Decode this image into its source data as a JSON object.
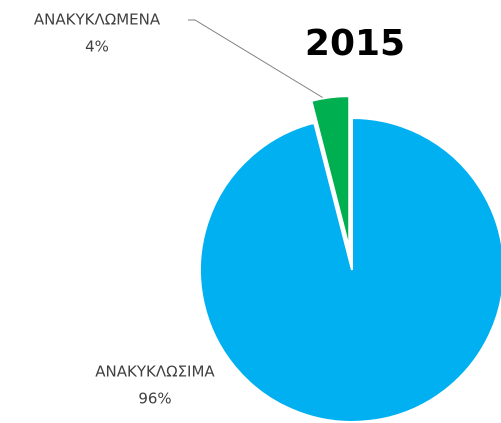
{
  "chart_data": {
    "type": "pie",
    "title": "2015",
    "categories": [
      "ΑΝΑΚΥΚΛΩΜΕΝΑ",
      "ΑΝΑΚΥΚΛΩΣΙΜΑ"
    ],
    "values": [
      4,
      96
    ],
    "value_labels": [
      "4%",
      "96%"
    ],
    "colors": [
      "#00b050",
      "#00b0f0"
    ]
  }
}
